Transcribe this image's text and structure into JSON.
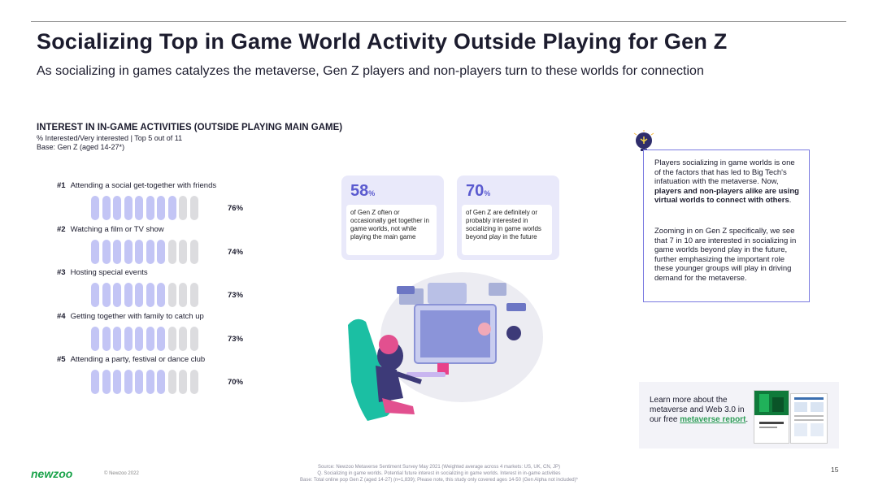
{
  "slide": {
    "title": "Socializing Top in Game World Activity Outside Playing for Gen Z",
    "subtitle": "As socializing in games catalyzes the metaverse, Gen Z players and non-players turn to these worlds for connection",
    "page_number": "15"
  },
  "chart": {
    "heading": "INTEREST IN IN-GAME ACTIVITIES (OUTSIDE PLAYING MAIN GAME)",
    "meta_line1": "%  Interested/Very interested | Top 5 out of 11",
    "meta_line2": "Base: Gen Z (aged 14-27*)"
  },
  "chart_data": {
    "type": "bar",
    "title": "INTEREST IN IN-GAME ACTIVITIES (OUTSIDE PLAYING MAIN GAME)",
    "categories": [
      "Attending a social get-together with friends",
      "Watching a film or TV show",
      "Hosting special events",
      "Getting together with family to catch up",
      "Attending a party, festival or dance club"
    ],
    "ranks": [
      "#1",
      "#2",
      "#3",
      "#4",
      "#5"
    ],
    "values": [
      76,
      74,
      73,
      73,
      70
    ],
    "value_labels": [
      "76%",
      "74%",
      "73%",
      "73%",
      "70%"
    ],
    "ylim": [
      0,
      100
    ],
    "icons_per_row": 10,
    "colors": {
      "filled": "#c3c5f5",
      "empty": "#dcdcdf"
    }
  },
  "stats": [
    {
      "number": "58",
      "unit": "%",
      "text": "of Gen Z often or occasionally get together in game worlds, not while playing the main game"
    },
    {
      "number": "70",
      "unit": "%",
      "text": "of Gen Z are definitely or probably interested in socializing in game worlds beyond play in the future"
    }
  ],
  "info": {
    "p1_start": "Players socializing in game worlds is one of the factors that has led to Big Tech's infatuation with the metaverse. Now, ",
    "p1_bold": "players and non-players alike are using virtual worlds to connect with others",
    "p1_end": ".",
    "p2": "Zooming in on Gen Z specifically, we see that 7 in 10 are interested in socializing in game worlds beyond play in the future, further emphasizing the important role these younger groups will play in driving demand for the metaverse."
  },
  "promo": {
    "text": "Learn more about the metaverse and Web 3.0 in our free ",
    "link": "metaverse report",
    "end": "."
  },
  "footer": {
    "logo": "newzoo",
    "copyright": "© Newzoo 2022",
    "source1": "Source: Newzoo Metaverse Sentiment Survey May 2021 (Weighted average across 4 markets: US, UK, CN, JP)",
    "source2": "Q. Socializing in game worlds. Potential future interest in socializing in game worlds. Interest in in-game activities",
    "source3": "Base: Total online pop Gen Z (aged 14-27) (n=1,839); Please note, this study only covered ages 14-50 (Gen Alpha not included)*"
  },
  "colors": {
    "accent": "#5a5acf",
    "infobox_border": "#7a7ae0",
    "brand_green": "#1aa34a"
  }
}
